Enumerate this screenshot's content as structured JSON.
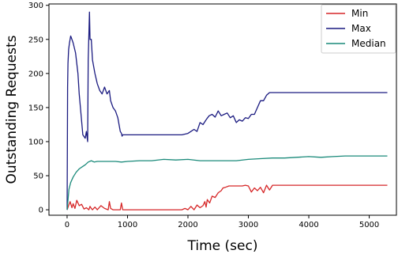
{
  "chart_data": {
    "type": "line",
    "title": "",
    "xlabel": "Time (sec)",
    "ylabel": "Outstanding Requests",
    "xlim": [
      -300,
      5450
    ],
    "ylim": [
      -8,
      302
    ],
    "xticks": [
      0,
      1000,
      2000,
      3000,
      4000,
      5000
    ],
    "yticks": [
      0,
      50,
      100,
      150,
      200,
      250,
      300
    ],
    "grid": false,
    "legend_position": "top-right",
    "series": [
      {
        "name": "Min",
        "color": "#d62728",
        "x": [
          0,
          20,
          50,
          80,
          100,
          130,
          160,
          200,
          240,
          280,
          320,
          360,
          380,
          400,
          420,
          460,
          500,
          560,
          620,
          680,
          700,
          720,
          760,
          820,
          880,
          900,
          920,
          960,
          1000,
          1200,
          1400,
          1600,
          1800,
          1900,
          1950,
          2000,
          2050,
          2100,
          2150,
          2200,
          2250,
          2280,
          2300,
          2320,
          2360,
          2400,
          2450,
          2500,
          2550,
          2580,
          2620,
          2680,
          2750,
          2800,
          2850,
          2900,
          2950,
          3000,
          3050,
          3100,
          3150,
          3200,
          3250,
          3300,
          3350,
          3400,
          4000,
          4500,
          5000,
          5300
        ],
        "y": [
          0,
          5,
          12,
          3,
          9,
          2,
          14,
          6,
          8,
          1,
          3,
          0,
          5,
          2,
          0,
          4,
          0,
          6,
          2,
          0,
          12,
          2,
          0,
          0,
          0,
          10,
          0,
          0,
          0,
          0,
          0,
          0,
          0,
          0,
          2,
          0,
          5,
          0,
          7,
          3,
          6,
          12,
          4,
          15,
          10,
          20,
          18,
          25,
          28,
          32,
          33,
          35,
          35,
          35,
          35,
          35,
          36,
          35,
          26,
          32,
          28,
          33,
          25,
          36,
          29,
          36,
          36,
          36,
          36,
          36
        ]
      },
      {
        "name": "Max",
        "color": "#1a1a80",
        "x": [
          0,
          8,
          15,
          25,
          40,
          60,
          80,
          100,
          140,
          180,
          200,
          230,
          260,
          300,
          320,
          340,
          350,
          370,
          380,
          390,
          400,
          420,
          460,
          500,
          540,
          580,
          620,
          660,
          700,
          720,
          760,
          800,
          840,
          880,
          900,
          910,
          920,
          950,
          1000,
          1200,
          1400,
          1600,
          1800,
          1900,
          2000,
          2050,
          2100,
          2150,
          2200,
          2250,
          2300,
          2350,
          2400,
          2450,
          2500,
          2550,
          2600,
          2650,
          2700,
          2750,
          2800,
          2850,
          2900,
          2950,
          3000,
          3050,
          3100,
          3150,
          3200,
          3250,
          3300,
          3350,
          3400,
          3600,
          4000,
          4500,
          5000,
          5300
        ],
        "y": [
          0,
          180,
          215,
          235,
          245,
          255,
          250,
          245,
          230,
          200,
          170,
          140,
          110,
          105,
          115,
          100,
          220,
          290,
          250,
          250,
          250,
          220,
          200,
          185,
          175,
          170,
          180,
          170,
          175,
          160,
          150,
          145,
          135,
          115,
          112,
          108,
          110,
          110,
          110,
          110,
          110,
          110,
          110,
          110,
          112,
          115,
          118,
          115,
          128,
          125,
          132,
          138,
          140,
          136,
          145,
          138,
          140,
          142,
          135,
          138,
          128,
          132,
          130,
          135,
          134,
          140,
          140,
          150,
          160,
          160,
          168,
          172,
          172,
          172,
          172,
          172,
          172,
          172
        ]
      },
      {
        "name": "Median",
        "color": "#1a8a7a",
        "x": [
          0,
          30,
          60,
          100,
          150,
          200,
          250,
          300,
          350,
          400,
          450,
          500,
          600,
          700,
          800,
          900,
          1000,
          1200,
          1400,
          1600,
          1800,
          2000,
          2200,
          2400,
          2600,
          2800,
          3000,
          3200,
          3400,
          3600,
          3800,
          4000,
          4200,
          4400,
          4600,
          4800,
          5000,
          5300
        ],
        "y": [
          0,
          30,
          40,
          48,
          55,
          60,
          63,
          66,
          70,
          72,
          70,
          71,
          71,
          71,
          71,
          70,
          71,
          72,
          72,
          74,
          73,
          74,
          72,
          72,
          72,
          72,
          74,
          75,
          76,
          76,
          77,
          78,
          77,
          78,
          79,
          79,
          79,
          79
        ]
      }
    ]
  }
}
